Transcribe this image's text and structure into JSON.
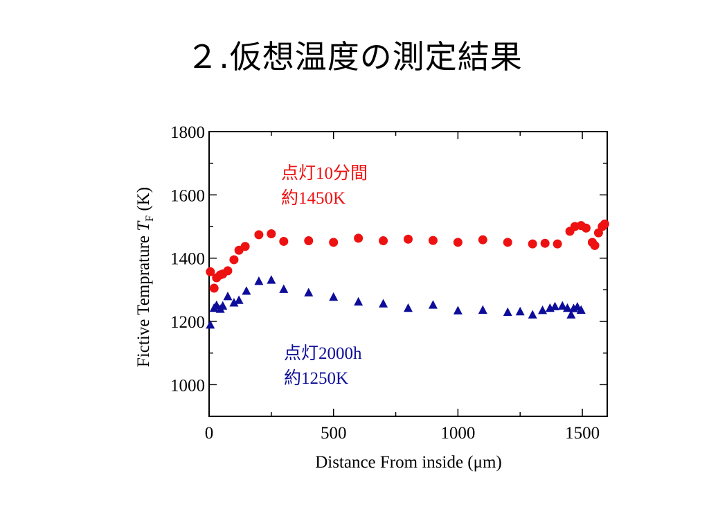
{
  "slide": {
    "title": "２.仮想温度の測定結果"
  },
  "colors": {
    "series_red": "#ee1111",
    "series_blue": "#0d0d99",
    "axis": "#000000"
  },
  "chart_data": {
    "type": "scatter",
    "ylabel_main": "Fictive Temprature ",
    "ylabel_var": "T",
    "ylabel_sub": "F",
    "ylabel_unit": " (K)",
    "xlabel": "Distance From inside (μm)",
    "xlim": [
      0,
      1600
    ],
    "ylim": [
      900,
      1800
    ],
    "x_ticks": [
      0,
      500,
      1000,
      1500
    ],
    "y_ticks": [
      1000,
      1200,
      1400,
      1600,
      1800
    ],
    "x_minor_step": 250,
    "y_minor_step": 100,
    "grid": false,
    "series": [
      {
        "marker": "circle",
        "color": "#ee1111",
        "label_lines": [
          "点灯10分間",
          "約1450K"
        ],
        "x": [
          5,
          20,
          30,
          45,
          55,
          75,
          100,
          120,
          145,
          200,
          250,
          300,
          400,
          500,
          600,
          700,
          800,
          900,
          1000,
          1100,
          1200,
          1300,
          1350,
          1400,
          1450,
          1470,
          1495,
          1515,
          1540,
          1550,
          1565,
          1580,
          1590
        ],
        "y": [
          1357,
          1305,
          1338,
          1347,
          1350,
          1360,
          1395,
          1425,
          1437,
          1474,
          1477,
          1453,
          1455,
          1450,
          1463,
          1455,
          1460,
          1456,
          1450,
          1458,
          1450,
          1445,
          1447,
          1445,
          1485,
          1500,
          1503,
          1495,
          1450,
          1440,
          1480,
          1500,
          1508
        ]
      },
      {
        "marker": "triangle",
        "color": "#0d0d99",
        "label_lines": [
          "点灯2000h",
          "約1250K"
        ],
        "x": [
          5,
          20,
          30,
          45,
          55,
          75,
          100,
          120,
          150,
          200,
          250,
          300,
          400,
          500,
          600,
          700,
          800,
          900,
          1000,
          1100,
          1200,
          1250,
          1300,
          1340,
          1370,
          1390,
          1420,
          1440,
          1455,
          1465,
          1480,
          1495
        ],
        "y": [
          1190,
          1243,
          1252,
          1240,
          1250,
          1280,
          1260,
          1268,
          1297,
          1328,
          1332,
          1303,
          1292,
          1278,
          1263,
          1257,
          1243,
          1253,
          1235,
          1237,
          1230,
          1232,
          1222,
          1236,
          1243,
          1248,
          1250,
          1243,
          1222,
          1242,
          1247,
          1237
        ]
      }
    ]
  }
}
